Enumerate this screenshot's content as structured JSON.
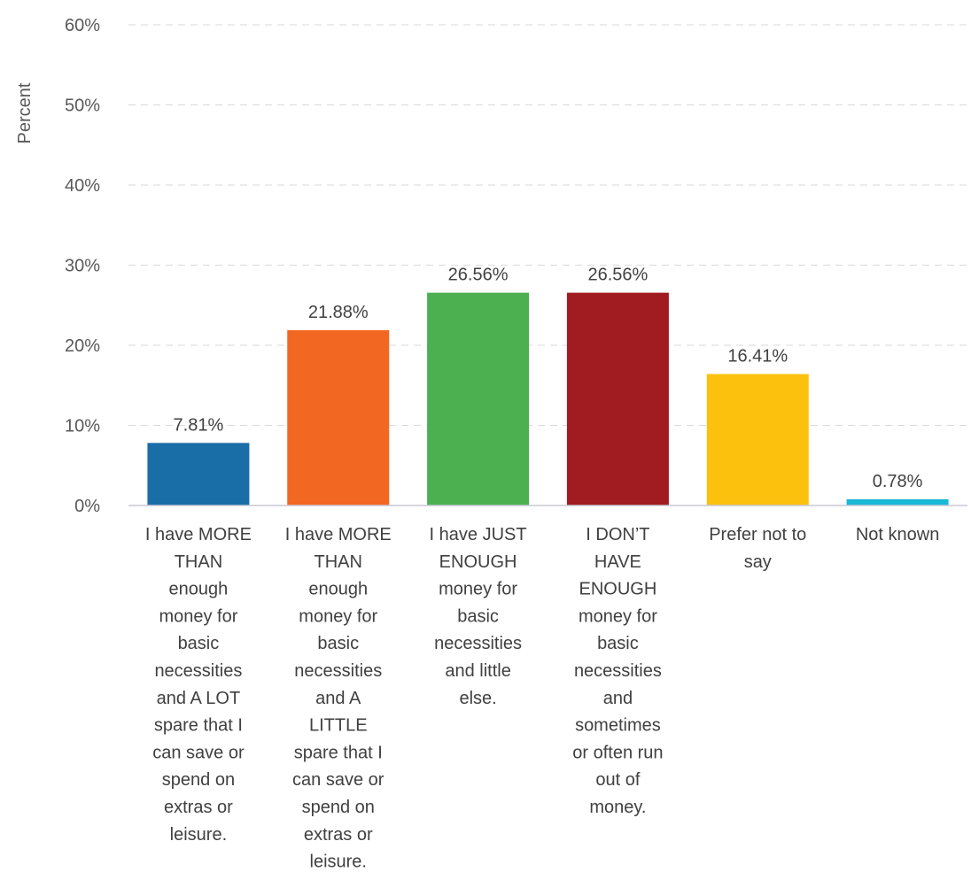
{
  "chart_data": {
    "type": "bar",
    "ylabel": "Percent",
    "xlabel": "",
    "ylim": [
      0,
      60
    ],
    "yticks": [
      "0%",
      "10%",
      "20%",
      "30%",
      "40%",
      "50%",
      "60%"
    ],
    "grid": true,
    "legend": "none",
    "categories": [
      "I have MORE THAN enough money for basic necessities and A LOT spare that I can save or spend on extras or leisure.",
      "I have MORE THAN enough money for basic necessities and A LITTLE spare that I can save or spend on extras or leisure.",
      "I have JUST ENOUGH money for basic necessities and little else.",
      "I DON’T HAVE ENOUGH money for basic necessities and sometimes or often run out of money.",
      "Prefer not to say",
      "Not known"
    ],
    "category_lines": [
      [
        "I have MORE",
        "THAN",
        "enough",
        "money for",
        "basic",
        "necessities",
        "and A LOT",
        "spare that I",
        "can save or",
        "spend on",
        "extras or",
        "leisure."
      ],
      [
        "I have MORE",
        "THAN",
        "enough",
        "money for",
        "basic",
        "necessities",
        "and A",
        "LITTLE",
        "spare that I",
        "can save or",
        "spend on",
        "extras or",
        "leisure."
      ],
      [
        "I have JUST",
        "ENOUGH",
        "money for",
        "basic",
        "necessities",
        "and little",
        "else."
      ],
      [
        "I DON’T",
        "HAVE",
        "ENOUGH",
        "money for",
        "basic",
        "necessities",
        "and",
        "sometimes",
        "or often run",
        "out of",
        "money."
      ],
      [
        "Prefer not to",
        "say"
      ],
      [
        "Not known"
      ]
    ],
    "values": [
      7.81,
      21.88,
      26.56,
      26.56,
      16.41,
      0.78
    ],
    "value_labels": [
      "7.81%",
      "21.88%",
      "26.56%",
      "26.56%",
      "16.41%",
      "0.78%"
    ],
    "colors": [
      "#1a6ea8",
      "#f26722",
      "#4caf50",
      "#a11c20",
      "#fcc10d",
      "#1ab8d6"
    ]
  }
}
